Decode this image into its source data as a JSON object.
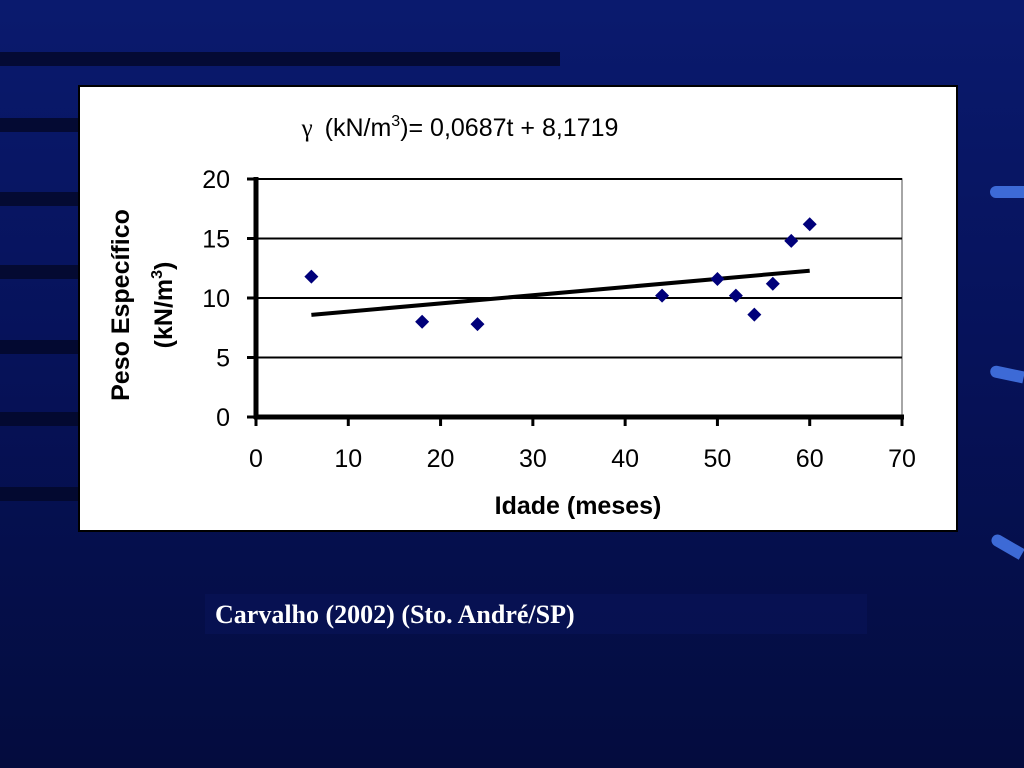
{
  "caption": "Carvalho (2002) (Sto. André/SP)",
  "colors": {
    "background": "#0a1a6e",
    "marker": "#00007a",
    "trendline": "#000000"
  },
  "chart_data": {
    "type": "scatter",
    "title": "γ (kN/m3)= 0,0687t + 8,1719",
    "title_parts": {
      "symbol": "γ",
      "before_sup": "(kN/m",
      "sup": "3",
      "after_sup": ")= 0,0687t + 8,1719"
    },
    "xlabel": "Idade (meses)",
    "ylabel_line1": "Peso Específico",
    "ylabel_line2_before": "(kN/m",
    "ylabel_line2_sup": "3",
    "ylabel_line2_after": ")",
    "xlim": [
      0,
      70
    ],
    "ylim": [
      0,
      20
    ],
    "xticks": [
      0,
      10,
      20,
      30,
      40,
      50,
      60,
      70
    ],
    "yticks": [
      0,
      5,
      10,
      15,
      20
    ],
    "grid": "horizontal",
    "marker": "diamond",
    "points": [
      {
        "x": 6,
        "y": 11.8
      },
      {
        "x": 18,
        "y": 8.0
      },
      {
        "x": 24,
        "y": 7.8
      },
      {
        "x": 44,
        "y": 10.2
      },
      {
        "x": 50,
        "y": 11.6
      },
      {
        "x": 52,
        "y": 10.2
      },
      {
        "x": 54,
        "y": 8.6
      },
      {
        "x": 56,
        "y": 11.2
      },
      {
        "x": 58,
        "y": 14.8
      },
      {
        "x": 60,
        "y": 16.2
      }
    ],
    "trendline": {
      "slope": 0.0687,
      "intercept": 8.1719,
      "x_range": [
        6,
        60
      ]
    }
  }
}
